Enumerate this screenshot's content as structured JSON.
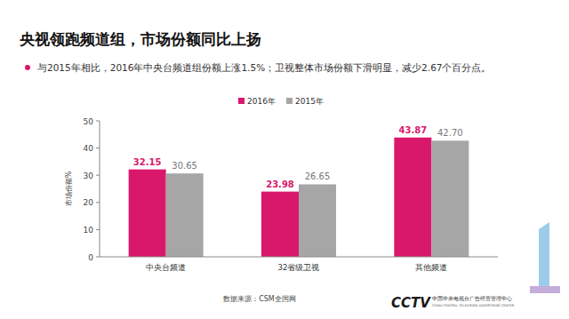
{
  "chart_data": {
    "type": "bar",
    "title": "央视领跑频道组，市场份额同比上扬",
    "subtitle": "与2015年相比，2016年中央台频道组份额上涨1.5%；卫视整体市场份额下滑明显，减少2.67个百分点。",
    "y_label": "市场份额%",
    "categories": [
      "中央台频道",
      "32省级卫视",
      "其他频道"
    ],
    "series": [
      {
        "name": "2016年",
        "color": "#d9186c",
        "values": [
          32.15,
          23.98,
          43.87
        ],
        "value_labels": [
          "32.15",
          "23.98",
          "43.87"
        ]
      },
      {
        "name": "2015年",
        "color": "#a6a6a6",
        "values": [
          30.65,
          26.65,
          42.7
        ],
        "value_labels": [
          "30.65",
          "26.65",
          "42.70"
        ]
      }
    ],
    "ylim": [
      0,
      50
    ],
    "yticks": [
      0,
      10,
      20,
      30,
      40,
      50
    ],
    "grid": false,
    "legend": "top",
    "data_labels": true,
    "annotations": [
      "数据来源：CSM全国网"
    ]
  },
  "logo": {
    "text": "CCTV",
    "name_cn": "中国中央电视台广告经营管理中心",
    "name_en": "CHINA CENTRAL TELEVISION ADVERTISING CENTER"
  }
}
